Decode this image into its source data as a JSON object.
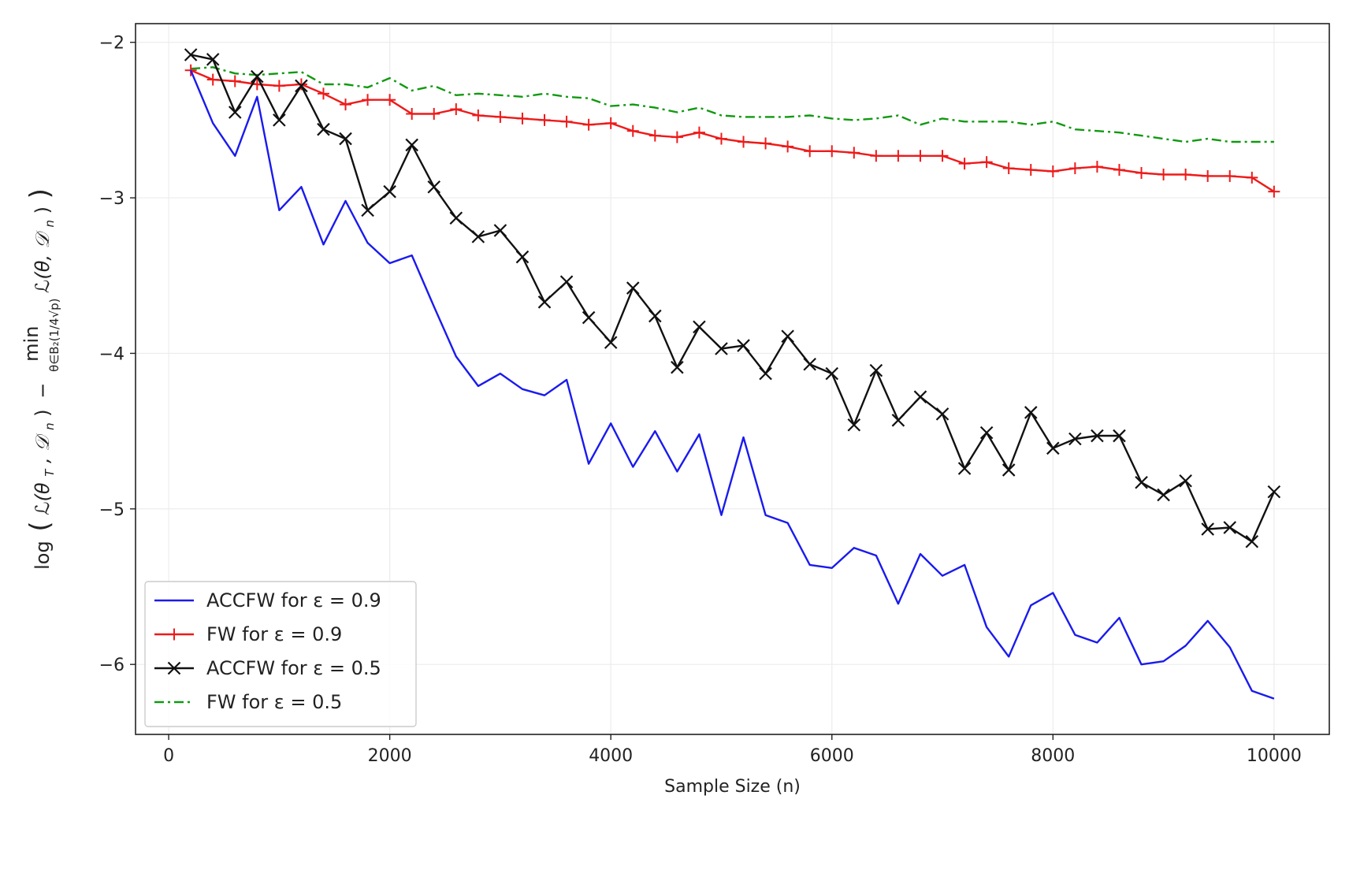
{
  "chart_data": {
    "type": "line",
    "title": "",
    "xlabel": "Sample Size (n)",
    "ylabel": {
      "lead": "log",
      "term1": "ℒ(θ",
      "term1_sub": "T",
      "term1_tail": ", 𝒟",
      "term1_sub2": "n",
      "term1_close": ")",
      "minus": "−",
      "min_word": "min",
      "min_sub": "θ∈B₂(1/4√p)",
      "term2": "ℒ(θ, 𝒟",
      "term2_sub": "n",
      "term2_close": ")"
    },
    "xlim": [
      -300,
      10500
    ],
    "ylim": [
      -6.45,
      -1.88
    ],
    "xticks": [
      0,
      2000,
      4000,
      6000,
      8000,
      10000
    ],
    "xtick_labels": [
      "0",
      "2000",
      "4000",
      "6000",
      "8000",
      "10000"
    ],
    "yticks": [
      -2,
      -3,
      -4,
      -5,
      -6
    ],
    "ytick_labels": [
      "−2",
      "−3",
      "−4",
      "−5",
      "−6"
    ],
    "grid": true,
    "legend_position": "lower-left",
    "x": [
      200,
      400,
      600,
      800,
      1000,
      1200,
      1400,
      1600,
      1800,
      2000,
      2200,
      2400,
      2600,
      2800,
      3000,
      3200,
      3400,
      3600,
      3800,
      4000,
      4200,
      4400,
      4600,
      4800,
      5000,
      5200,
      5400,
      5600,
      5800,
      6000,
      6200,
      6400,
      6600,
      6800,
      7000,
      7200,
      7400,
      7600,
      7800,
      8000,
      8200,
      8400,
      8600,
      8800,
      9000,
      9200,
      9400,
      9600,
      9800,
      10000
    ],
    "series": [
      {
        "name": "ACCFW for ε = 0.9",
        "color": "#1a1aee",
        "style": "solid",
        "marker": "none",
        "values": [
          -2.18,
          -2.52,
          -2.73,
          -2.35,
          -3.08,
          -2.93,
          -3.3,
          -3.02,
          -3.29,
          -3.42,
          -3.37,
          -3.7,
          -4.02,
          -4.21,
          -4.13,
          -4.23,
          -4.27,
          -4.17,
          -4.71,
          -4.45,
          -4.73,
          -4.5,
          -4.76,
          -4.52,
          -5.04,
          -4.54,
          -5.04,
          -5.09,
          -5.36,
          -5.38,
          -5.25,
          -5.3,
          -5.61,
          -5.29,
          -5.43,
          -5.36,
          -5.76,
          -5.95,
          -5.62,
          -5.54,
          -5.81,
          -5.86,
          -5.7,
          -6.0,
          -5.98,
          -5.88,
          -5.72,
          -5.89,
          -6.17,
          -6.22
        ]
      },
      {
        "name": "FW for ε = 0.9",
        "color": "#ee1a1a",
        "style": "solid",
        "marker": "plus",
        "values": [
          -2.18,
          -2.24,
          -2.25,
          -2.27,
          -2.28,
          -2.27,
          -2.33,
          -2.4,
          -2.37,
          -2.37,
          -2.46,
          -2.46,
          -2.43,
          -2.47,
          -2.48,
          -2.49,
          -2.5,
          -2.51,
          -2.53,
          -2.52,
          -2.57,
          -2.6,
          -2.61,
          -2.58,
          -2.62,
          -2.64,
          -2.65,
          -2.67,
          -2.7,
          -2.7,
          -2.71,
          -2.73,
          -2.73,
          -2.73,
          -2.73,
          -2.78,
          -2.77,
          -2.81,
          -2.82,
          -2.83,
          -2.81,
          -2.8,
          -2.82,
          -2.84,
          -2.85,
          -2.85,
          -2.86,
          -2.86,
          -2.87,
          -2.96
        ]
      },
      {
        "name": "ACCFW for ε = 0.5",
        "color": "#111111",
        "style": "solid",
        "marker": "x",
        "values": [
          -2.08,
          -2.11,
          -2.45,
          -2.22,
          -2.5,
          -2.28,
          -2.56,
          -2.62,
          -3.08,
          -2.96,
          -2.66,
          -2.93,
          -3.13,
          -3.25,
          -3.21,
          -3.38,
          -3.67,
          -3.54,
          -3.77,
          -3.93,
          -3.58,
          -3.76,
          -4.09,
          -3.83,
          -3.97,
          -3.95,
          -4.13,
          -3.89,
          -4.07,
          -4.13,
          -4.46,
          -4.11,
          -4.43,
          -4.28,
          -4.39,
          -4.74,
          -4.51,
          -4.75,
          -4.38,
          -4.61,
          -4.55,
          -4.53,
          -4.53,
          -4.83,
          -4.91,
          -4.82,
          -5.13,
          -5.12,
          -5.21,
          -4.89
        ]
      },
      {
        "name": "FW for ε = 0.5",
        "color": "#119911",
        "style": "dashdot",
        "marker": "none",
        "values": [
          -2.17,
          -2.16,
          -2.2,
          -2.21,
          -2.2,
          -2.19,
          -2.27,
          -2.27,
          -2.29,
          -2.23,
          -2.31,
          -2.28,
          -2.34,
          -2.33,
          -2.34,
          -2.35,
          -2.33,
          -2.35,
          -2.36,
          -2.41,
          -2.4,
          -2.42,
          -2.45,
          -2.42,
          -2.47,
          -2.48,
          -2.48,
          -2.48,
          -2.47,
          -2.49,
          -2.5,
          -2.49,
          -2.47,
          -2.53,
          -2.49,
          -2.51,
          -2.51,
          -2.51,
          -2.53,
          -2.51,
          -2.56,
          -2.57,
          -2.58,
          -2.6,
          -2.62,
          -2.64,
          -2.62,
          -2.64,
          -2.64,
          -2.64
        ]
      }
    ]
  }
}
